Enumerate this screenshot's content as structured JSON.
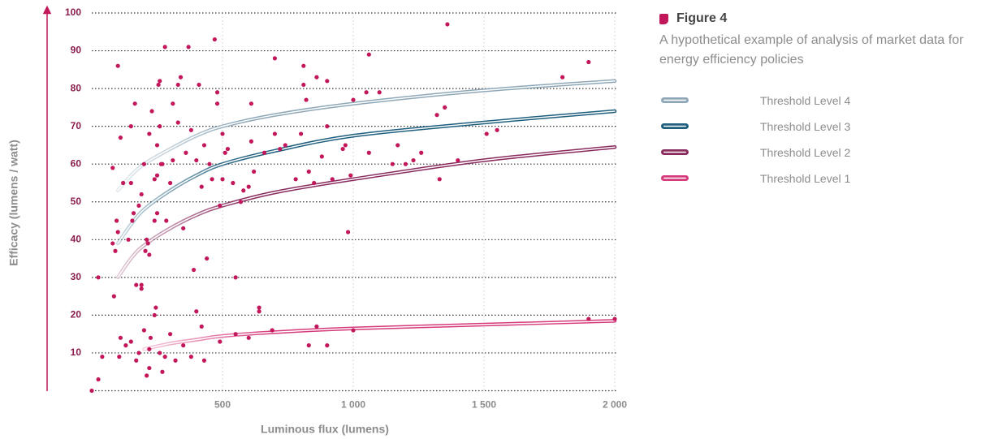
{
  "chart_data": {
    "type": "scatter",
    "title": "Figure 4",
    "subtitle": "A hypothetical example of analysis of market data for energy efficiency policies",
    "xlabel": "Luminous flux (lumens)",
    "ylabel": "Efficacy (lumens / watt)",
    "xlim": [
      0,
      2000
    ],
    "ylim": [
      0,
      100
    ],
    "xticks": [
      500,
      {
        "value": 1000,
        "label": "1 000"
      },
      {
        "value": 1500,
        "label": "1 500"
      },
      {
        "value": 2000,
        "label": "2 000"
      }
    ],
    "yticks": [
      10,
      20,
      30,
      40,
      50,
      60,
      70,
      80,
      90,
      100
    ],
    "grid": true,
    "color": "#c2185b",
    "x": [
      0,
      25,
      25,
      40,
      80,
      80,
      85,
      90,
      95,
      100,
      100,
      110,
      110,
      105,
      120,
      130,
      140,
      150,
      155,
      150,
      160,
      165,
      170,
      180,
      170,
      190,
      200,
      190,
      210,
      205,
      210,
      215,
      220,
      220,
      220,
      225,
      230,
      240,
      240,
      250,
      250,
      255,
      260,
      260,
      250,
      265,
      270,
      280,
      285,
      300,
      310,
      310,
      320,
      330,
      330,
      340,
      350,
      360,
      370,
      380,
      390,
      400,
      400,
      410,
      420,
      430,
      440,
      450,
      460,
      470,
      480,
      480,
      490,
      500,
      500,
      510,
      520,
      540,
      550,
      570,
      580,
      600,
      610,
      610,
      620,
      640,
      640,
      660,
      700,
      700,
      720,
      740,
      780,
      800,
      810,
      810,
      820,
      830,
      850,
      860,
      880,
      900,
      900,
      920,
      960,
      970,
      980,
      990,
      1000,
      1050,
      1060,
      1060,
      1100,
      1150,
      1170,
      1200,
      1230,
      1260,
      1320,
      1330,
      1350,
      1360,
      1400,
      1510,
      1550,
      1800,
      1900,
      1900,
      2000,
      150,
      180,
      200,
      220,
      240,
      245,
      260,
      270,
      280,
      300,
      350,
      380,
      420,
      430,
      490,
      550,
      600,
      690,
      830,
      860,
      900,
      1000,
      190
    ],
    "values": [
      0,
      30,
      3,
      9,
      59,
      39,
      25,
      37,
      45,
      86,
      42,
      67,
      14,
      9,
      55,
      12,
      40,
      55,
      45,
      70,
      47,
      76,
      28,
      49,
      8,
      52,
      60,
      27,
      4,
      37,
      40,
      39,
      6,
      68,
      36,
      14,
      74,
      56,
      45,
      57,
      65,
      81,
      82,
      70,
      47,
      60,
      60,
      91,
      45,
      55,
      61,
      76,
      8,
      71,
      81,
      83,
      43,
      63,
      91,
      69,
      32,
      21,
      61,
      81,
      54,
      65,
      35,
      60,
      56,
      93,
      79,
      76,
      49,
      68,
      56,
      63,
      64,
      55,
      30,
      50,
      53,
      54,
      66,
      76,
      58,
      22,
      21,
      63,
      88,
      68,
      64,
      65,
      56,
      68,
      86,
      81,
      77,
      58,
      55,
      83,
      62,
      82,
      70,
      56,
      64,
      65,
      42,
      57,
      77,
      79,
      63,
      89,
      79,
      60,
      65,
      60,
      61,
      63,
      73,
      56,
      75,
      97,
      61,
      68,
      69,
      83,
      87,
      19,
      19,
      13,
      10,
      16,
      11,
      20,
      22,
      10,
      5,
      9,
      15,
      12,
      9,
      17,
      8,
      13,
      15,
      14,
      16,
      12,
      17,
      12,
      16,
      28
    ],
    "series": [
      {
        "name": "Threshold Level 4",
        "color": "#8fa8b9",
        "x": [
          100,
          150,
          200,
          300,
          400,
          500,
          700,
          1000,
          1500,
          2000
        ],
        "values": [
          53,
          57,
          60,
          64,
          67.5,
          70,
          73,
          76,
          79.5,
          82
        ]
      },
      {
        "name": "Threshold Level 3",
        "color": "#1f5f7e",
        "x": [
          100,
          150,
          200,
          300,
          400,
          500,
          700,
          1000,
          1500,
          2000
        ],
        "values": [
          39,
          44,
          48,
          53,
          57,
          60,
          63.5,
          67.5,
          71,
          74
        ]
      },
      {
        "name": "Threshold Level 2",
        "color": "#8a2b5f",
        "x": [
          100,
          150,
          200,
          300,
          400,
          500,
          700,
          1000,
          1500,
          2000
        ],
        "values": [
          30,
          35,
          38.5,
          43,
          46.5,
          49,
          52.5,
          56,
          61,
          64.5
        ]
      },
      {
        "name": "Threshold Level 1",
        "color": "#d63a7d",
        "x": [
          200,
          300,
          400,
          500,
          700,
          1000,
          1500,
          2000
        ],
        "values": [
          11,
          12.5,
          13.5,
          14.5,
          15.5,
          16.5,
          17.5,
          18.5
        ]
      }
    ]
  }
}
